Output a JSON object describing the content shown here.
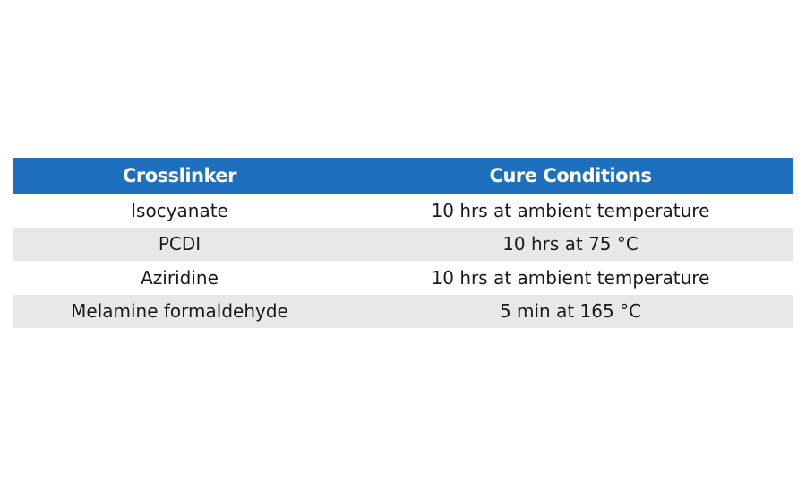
{
  "table": {
    "headers": [
      "Crosslinker",
      "Cure Conditions"
    ],
    "rows": [
      [
        "Isocyanate",
        "10 hrs at ambient temperature"
      ],
      [
        "PCDI",
        "10 hrs at 75 °C"
      ],
      [
        "Aziridine",
        "10 hrs at ambient temperature"
      ],
      [
        "Melamine formaldehyde",
        "5 min at 165 °C"
      ]
    ],
    "colors": {
      "header_background": "#1f6fbf",
      "header_text": "#ffffff",
      "shaded_row_background": "#e7e8e9",
      "body_text": "#1a1a1a"
    }
  }
}
